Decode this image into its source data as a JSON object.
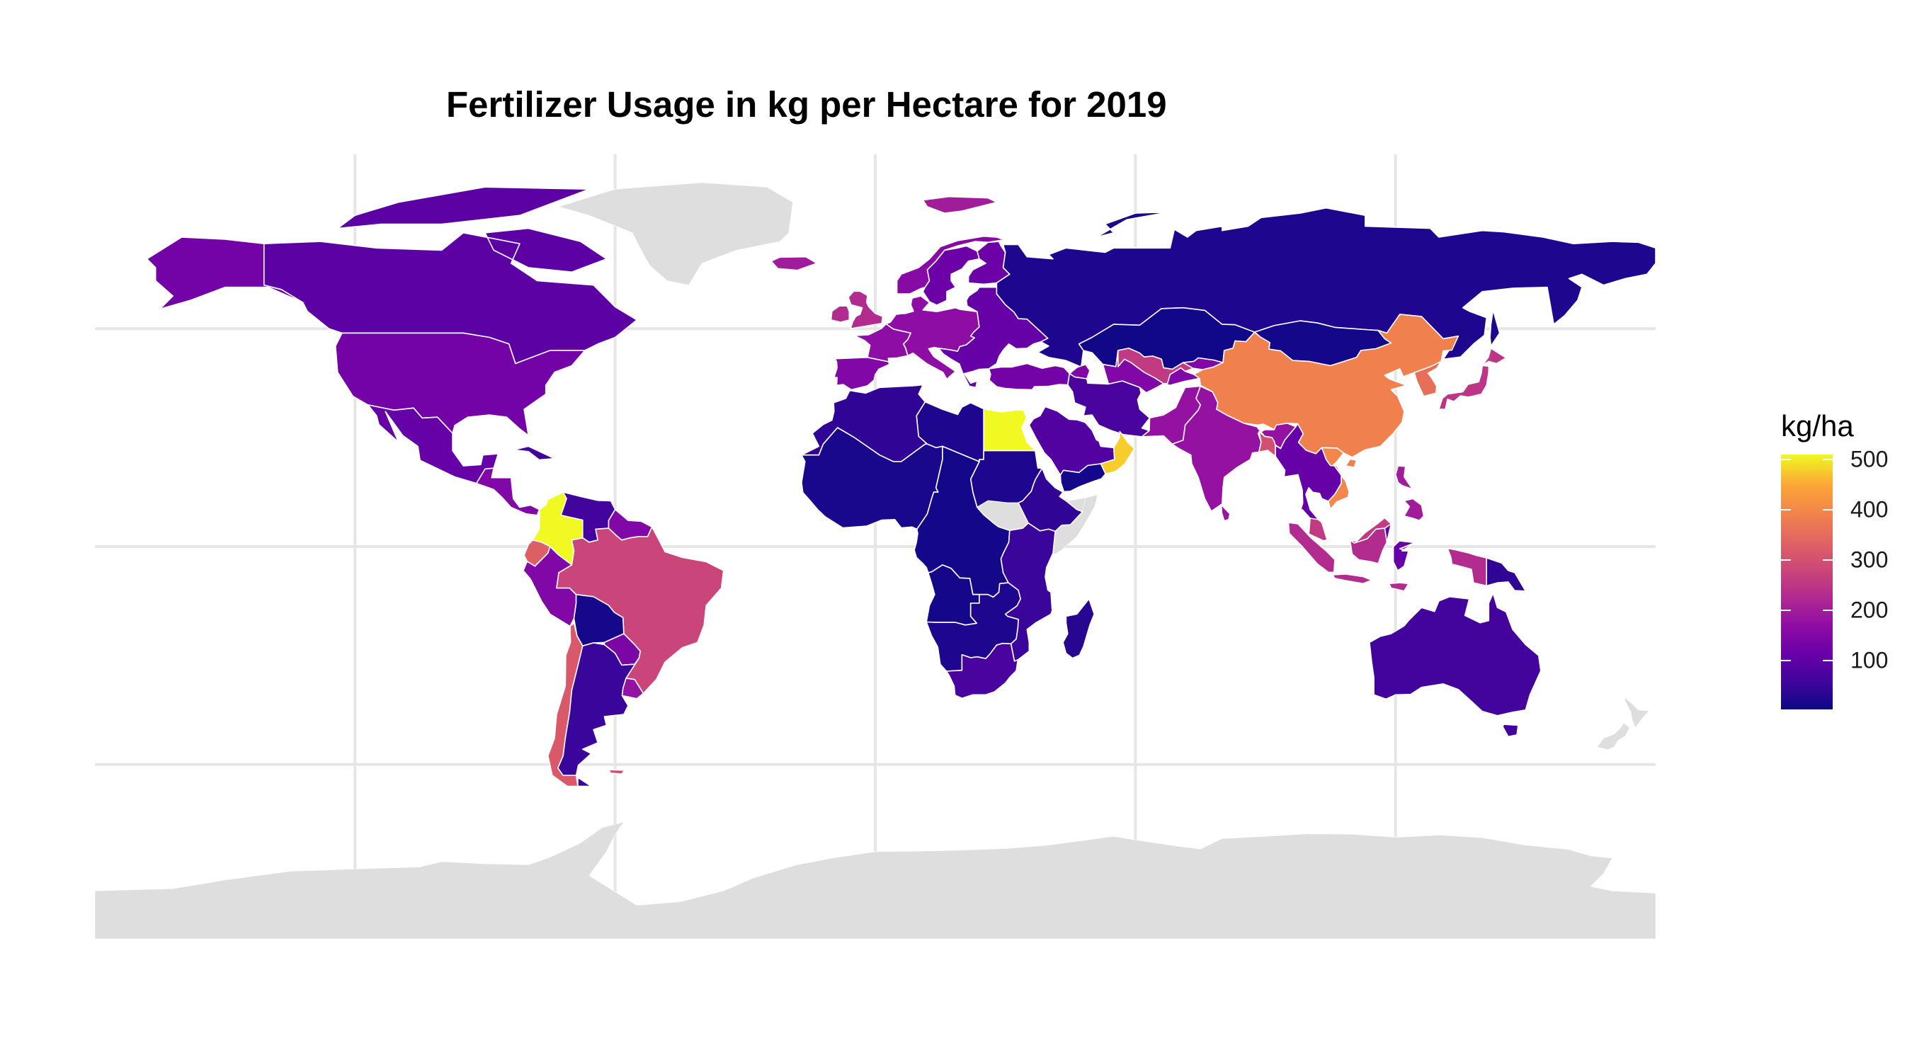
{
  "title": "Fertilizer Usage in kg per Hectare for 2019",
  "legend": {
    "title": "kg/ha",
    "ticks": [
      100,
      200,
      300,
      400,
      500
    ],
    "range": [
      2,
      510
    ],
    "palette": "plasma"
  },
  "chart_data": {
    "type": "choropleth",
    "title": "Fertilizer Usage in kg per Hectare for 2019",
    "value_unit": "kg/ha",
    "year": 2019,
    "projection": "equirectangular",
    "lon_range": [
      -180,
      180
    ],
    "lat_range": [
      -90,
      90
    ],
    "graticule_lon": [
      -120,
      -60,
      0,
      60,
      120
    ],
    "graticule_lat": [
      -50,
      0,
      50
    ],
    "no_data_color": "#DEDEDE",
    "border_color": "#FFFFFF",
    "scale": {
      "palette": "plasma",
      "min": 2,
      "max": 510,
      "breaks": [
        100,
        200,
        300,
        400,
        500
      ]
    },
    "regions": [
      {
        "name": "Alaska (United States)",
        "value": 130
      },
      {
        "name": "Canada",
        "value": 95
      },
      {
        "name": "United States",
        "value": 130
      },
      {
        "name": "Mexico",
        "value": 110
      },
      {
        "name": "Central America",
        "value": 150
      },
      {
        "name": "Cuba",
        "value": 60
      },
      {
        "name": "Colombia",
        "value": 510
      },
      {
        "name": "Venezuela",
        "value": 60
      },
      {
        "name": "Guianas",
        "value": 150
      },
      {
        "name": "Ecuador",
        "value": 330
      },
      {
        "name": "Peru",
        "value": 150
      },
      {
        "name": "Brazil",
        "value": 280
      },
      {
        "name": "Bolivia",
        "value": 12
      },
      {
        "name": "Paraguay",
        "value": 140
      },
      {
        "name": "Uruguay",
        "value": 180
      },
      {
        "name": "Chile",
        "value": 320
      },
      {
        "name": "Argentina",
        "value": 50
      },
      {
        "name": "Falkland Islands",
        "value": 300
      },
      {
        "name": "Greenland",
        "value": null
      },
      {
        "name": "Iceland",
        "value": 200
      },
      {
        "name": "Svalbard",
        "value": 200
      },
      {
        "name": "Norway",
        "value": 160
      },
      {
        "name": "Sweden",
        "value": 120
      },
      {
        "name": "Finland",
        "value": 120
      },
      {
        "name": "United Kingdom",
        "value": 230
      },
      {
        "name": "Ireland",
        "value": 230
      },
      {
        "name": "France",
        "value": 170
      },
      {
        "name": "Iberia",
        "value": 150
      },
      {
        "name": "Central Europe",
        "value": 170
      },
      {
        "name": "Eastern Europe",
        "value": 110
      },
      {
        "name": "Turkey",
        "value": 130
      },
      {
        "name": "Russia",
        "value": 20
      },
      {
        "name": "Kazakhstan",
        "value": 5
      },
      {
        "name": "Central Asia",
        "value": 150
      },
      {
        "name": "Uzbekistan",
        "value": 260
      },
      {
        "name": "Mongolia",
        "value": 10
      },
      {
        "name": "China",
        "value": 390
      },
      {
        "name": "Korea",
        "value": 360
      },
      {
        "name": "Japan",
        "value": 250
      },
      {
        "name": "Iran",
        "value": 70
      },
      {
        "name": "Pakistan",
        "value": 180
      },
      {
        "name": "India",
        "value": 180
      },
      {
        "name": "Sri Lanka",
        "value": 190
      },
      {
        "name": "Bangladesh",
        "value": 300
      },
      {
        "name": "Southeast Asia",
        "value": 110
      },
      {
        "name": "Vietnam",
        "value": 400
      },
      {
        "name": "Philippines",
        "value": 200
      },
      {
        "name": "Malaysia",
        "value": 260
      },
      {
        "name": "Indonesia",
        "value": 230
      },
      {
        "name": "Papua New Guinea",
        "value": 40
      },
      {
        "name": "Australia",
        "value": 60
      },
      {
        "name": "New Zealand",
        "value": null
      },
      {
        "name": "Saudi Arabia",
        "value": 80
      },
      {
        "name": "Oman",
        "value": 480
      },
      {
        "name": "Yemen",
        "value": 10
      },
      {
        "name": "Egypt",
        "value": 510
      },
      {
        "name": "Libya",
        "value": 20
      },
      {
        "name": "North Africa",
        "value": 40
      },
      {
        "name": "West Africa",
        "value": 15
      },
      {
        "name": "Sudan",
        "value": 20
      },
      {
        "name": "South Sudan",
        "value": null
      },
      {
        "name": "Somalia",
        "value": null
      },
      {
        "name": "Ethiopia",
        "value": 40
      },
      {
        "name": "Central Africa",
        "value": 8
      },
      {
        "name": "East Africa",
        "value": 50
      },
      {
        "name": "Angola",
        "value": 10
      },
      {
        "name": "Southern Africa",
        "value": 20
      },
      {
        "name": "South Africa",
        "value": 70
      },
      {
        "name": "Madagascar",
        "value": 30
      },
      {
        "name": "Antarctica",
        "value": null
      }
    ]
  }
}
